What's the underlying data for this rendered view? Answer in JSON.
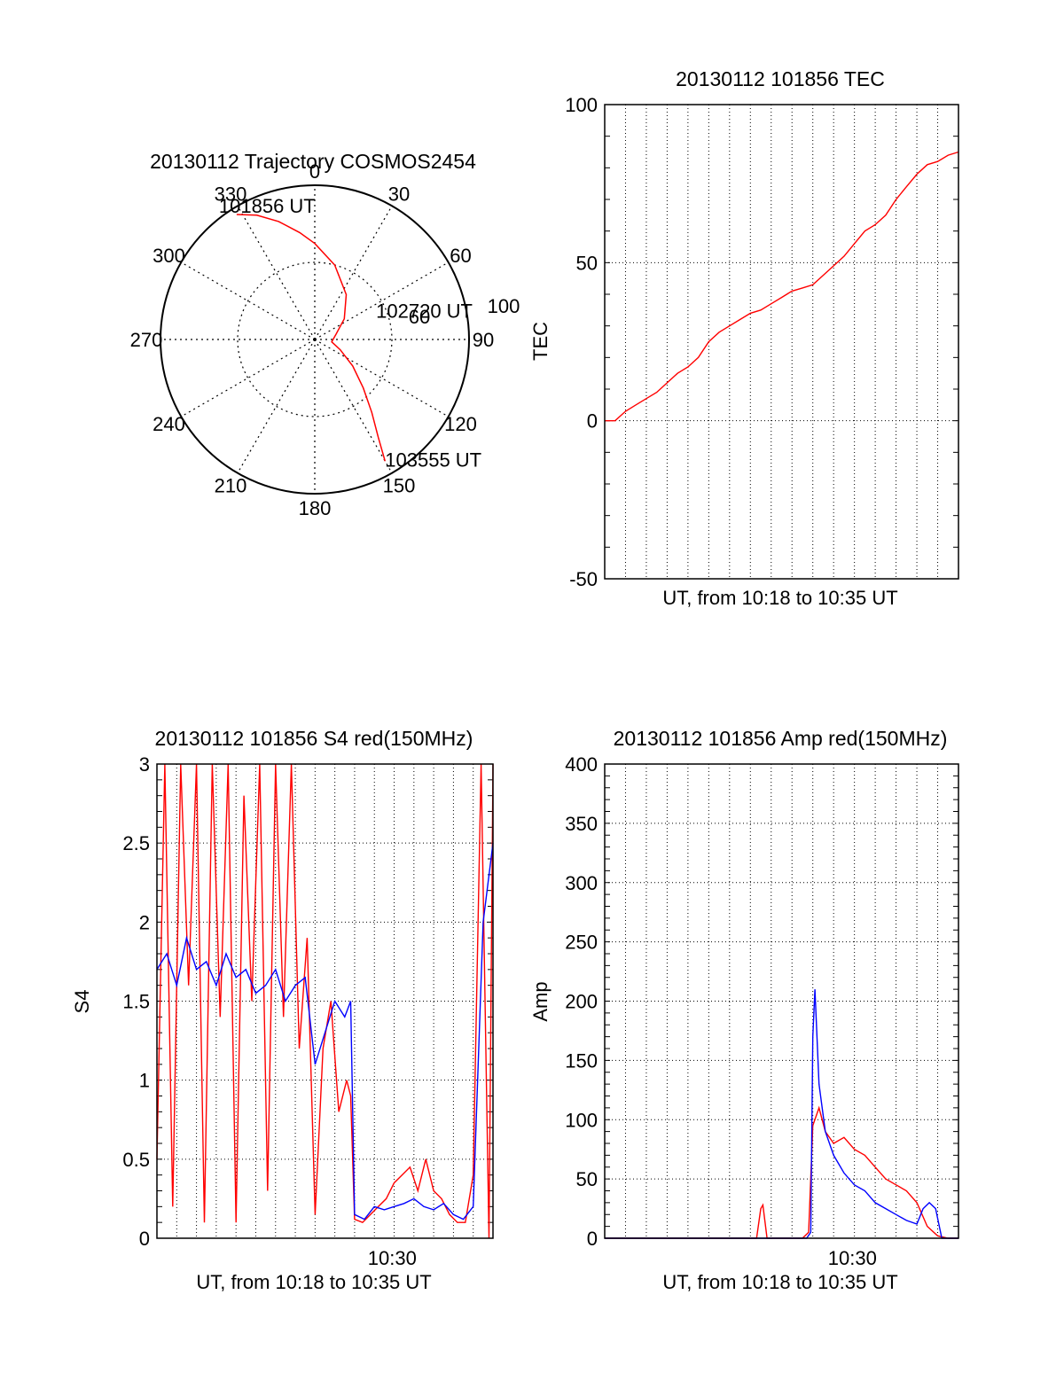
{
  "chart_data": [
    {
      "id": "trajectory",
      "type": "polar",
      "title": "20130112 Trajectory COSMOS2454",
      "angle_labels": [
        "0",
        "30",
        "60",
        "90",
        "120",
        "150",
        "180",
        "210",
        "240",
        "270",
        "300",
        "330"
      ],
      "radial_labels": [
        "60",
        "100"
      ],
      "series": [
        {
          "color": "#ff0000",
          "points": [
            [
              328,
              86
            ],
            [
              335,
              80
            ],
            [
              343,
              72
            ],
            [
              352,
              63
            ],
            [
              0,
              56
            ],
            [
              15,
              45
            ],
            [
              35,
              32
            ],
            [
              55,
              21
            ],
            [
              75,
              13
            ],
            [
              98,
              10
            ],
            [
              112,
              16
            ],
            [
              125,
              27
            ],
            [
              135,
              40
            ],
            [
              142,
              54
            ],
            [
              147,
              68
            ],
            [
              150,
              82
            ]
          ]
        }
      ],
      "annotations": [
        {
          "text": "101856 UT",
          "angle": 328,
          "radius": 86
        },
        {
          "text": "102720 UT",
          "angle": 98,
          "radius": 10
        },
        {
          "text": "103555 UT",
          "angle": 150,
          "radius": 82
        }
      ]
    },
    {
      "id": "tec",
      "type": "line",
      "title": "20130112 101856 TEC",
      "xlabel": "UT, from 10:18 to 10:35 UT",
      "ylabel": "TEC",
      "xlim": [
        0,
        17
      ],
      "ylim": [
        -50,
        100
      ],
      "yticks": [
        "-50",
        "0",
        "50",
        "100"
      ],
      "grid": true,
      "series": [
        {
          "color": "#ff0000",
          "x": [
            0,
            0.5,
            1,
            1.5,
            2,
            2.5,
            3,
            3.5,
            4,
            4.5,
            5,
            5.5,
            6,
            6.5,
            7,
            7.5,
            8,
            8.5,
            9,
            9.5,
            10,
            10.5,
            11,
            11.5,
            12,
            12.5,
            13,
            13.5,
            14,
            14.5,
            15,
            15.5,
            16,
            16.5,
            17
          ],
          "y": [
            0,
            0,
            3,
            5,
            7,
            9,
            12,
            15,
            17,
            20,
            25,
            28,
            30,
            32,
            34,
            35,
            37,
            39,
            41,
            42,
            43,
            46,
            49,
            52,
            56,
            60,
            62,
            65,
            70,
            74,
            78,
            81,
            82,
            84,
            85
          ]
        }
      ]
    },
    {
      "id": "s4",
      "type": "line",
      "title": "20130112 101856 S4 red(150MHz)",
      "xlabel": "UT, from 10:18 to 10:35 UT",
      "ylabel": "S4",
      "xlim": [
        0,
        17
      ],
      "ylim": [
        0,
        3
      ],
      "yticks": [
        "0",
        "0.5",
        "1",
        "1.5",
        "2",
        "2.5",
        "3"
      ],
      "xtick_labels": [
        {
          "x": 11.9,
          "label": "10:30"
        }
      ],
      "grid": true,
      "series": [
        {
          "color": "#ff0000",
          "x": [
            0,
            0.4,
            0.8,
            1.2,
            1.6,
            2,
            2.4,
            2.8,
            3.2,
            3.6,
            4,
            4.4,
            4.8,
            5.2,
            5.6,
            6,
            6.4,
            6.8,
            7.2,
            7.6,
            8,
            8.4,
            8.8,
            9.2,
            9.6,
            9.8,
            10,
            10.4,
            10.8,
            11.2,
            11.6,
            12,
            12.4,
            12.8,
            13.2,
            13.6,
            14,
            14.4,
            14.8,
            15.2,
            15.6,
            16,
            16.4,
            16.8,
            17
          ],
          "y": [
            0.5,
            3.0,
            0.2,
            3.0,
            1.6,
            3.0,
            0.1,
            3.0,
            1.4,
            3.0,
            0.1,
            2.8,
            1.5,
            3.0,
            0.3,
            3.0,
            1.4,
            3.0,
            1.2,
            1.9,
            0.15,
            1.2,
            1.5,
            0.8,
            1.0,
            0.9,
            0.12,
            0.1,
            0.15,
            0.2,
            0.25,
            0.35,
            0.4,
            0.45,
            0.3,
            0.5,
            0.3,
            0.25,
            0.15,
            0.1,
            0.1,
            0.4,
            3.0,
            0.0,
            3.0
          ]
        },
        {
          "color": "#0000ff",
          "x": [
            0,
            0.5,
            1,
            1.5,
            2,
            2.5,
            3,
            3.5,
            4,
            4.5,
            5,
            5.5,
            6,
            6.5,
            7,
            7.5,
            8,
            8.5,
            9,
            9.5,
            9.8,
            10,
            10.5,
            11,
            11.5,
            12,
            12.5,
            13,
            13.5,
            14,
            14.5,
            15,
            15.5,
            16,
            16.5,
            17
          ],
          "y": [
            1.7,
            1.8,
            1.6,
            1.9,
            1.7,
            1.75,
            1.6,
            1.8,
            1.65,
            1.7,
            1.55,
            1.6,
            1.7,
            1.5,
            1.6,
            1.65,
            1.1,
            1.3,
            1.5,
            1.4,
            1.5,
            0.15,
            0.12,
            0.2,
            0.18,
            0.2,
            0.22,
            0.25,
            0.2,
            0.18,
            0.22,
            0.15,
            0.12,
            0.2,
            2.0,
            2.5
          ]
        }
      ]
    },
    {
      "id": "amp",
      "type": "line",
      "title": "20130112 101856 Amp red(150MHz)",
      "xlabel": "UT, from 10:18 to 10:35 UT",
      "ylabel": "Amp",
      "xlim": [
        0,
        17
      ],
      "ylim": [
        0,
        400
      ],
      "yticks": [
        "0",
        "50",
        "100",
        "150",
        "200",
        "250",
        "300",
        "350",
        "400"
      ],
      "xtick_labels": [
        {
          "x": 11.9,
          "label": "10:30"
        }
      ],
      "grid": true,
      "series": [
        {
          "color": "#ff0000",
          "x": [
            0,
            2,
            4,
            6,
            7.3,
            7.5,
            7.6,
            7.8,
            8.0,
            9.5,
            9.8,
            10.0,
            10.3,
            10.6,
            11,
            11.5,
            12,
            12.5,
            13,
            13.5,
            14,
            14.5,
            15,
            15.5,
            16,
            16.5,
            17
          ],
          "y": [
            0,
            0,
            0,
            0,
            0,
            25,
            28,
            0,
            0,
            0,
            5,
            95,
            110,
            90,
            80,
            85,
            75,
            70,
            60,
            50,
            45,
            40,
            30,
            10,
            2,
            0,
            0
          ]
        },
        {
          "color": "#0000ff",
          "x": [
            0,
            2,
            4,
            6,
            8,
            9,
            9.7,
            9.9,
            10.0,
            10.1,
            10.3,
            10.6,
            11,
            11.5,
            12,
            12.5,
            13,
            13.5,
            14,
            14.5,
            15,
            15.3,
            15.6,
            15.9,
            16.2,
            16.5,
            17
          ],
          "y": [
            0,
            0,
            0,
            0,
            0,
            0,
            0,
            5,
            170,
            210,
            130,
            90,
            70,
            55,
            45,
            40,
            30,
            25,
            20,
            15,
            12,
            25,
            30,
            25,
            0,
            0,
            0
          ]
        }
      ]
    }
  ]
}
